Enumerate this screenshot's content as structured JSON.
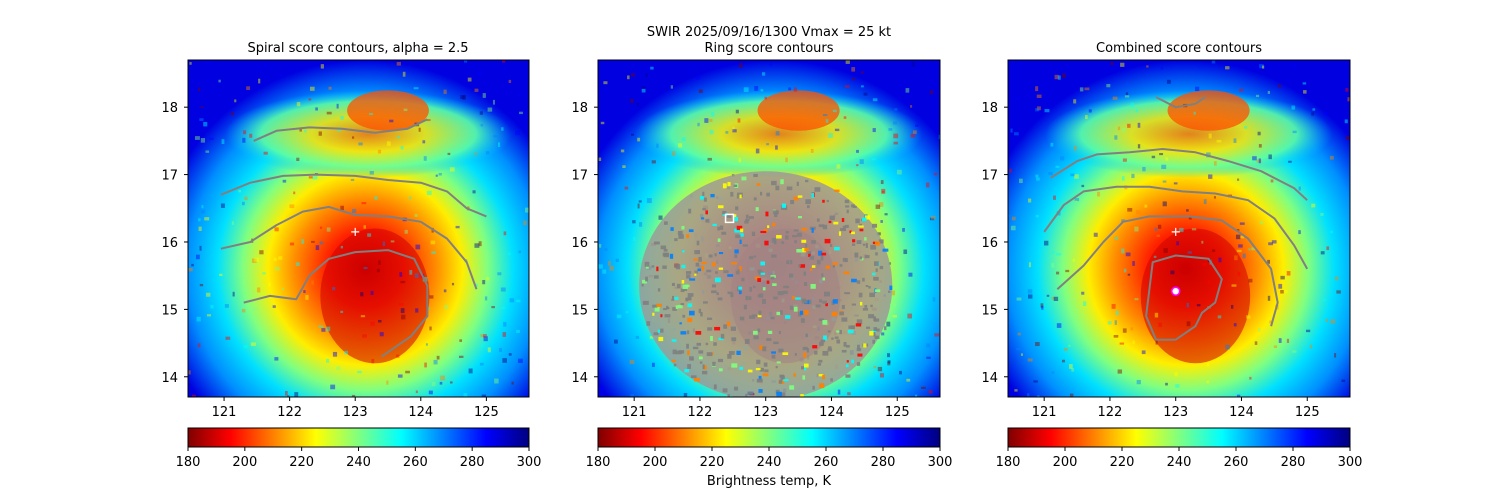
{
  "figure": {
    "suptitle_line1": "SWIR  2025/09/16/1300    Vmax = 25 kt",
    "colorbar_label": "Brightness temp, K"
  },
  "colormap": {
    "name": "jet_r",
    "stops": [
      "#800000",
      "#ff0000",
      "#ff8000",
      "#ffff00",
      "#80ff80",
      "#00ffff",
      "#0080ff",
      "#0000ff",
      "#000080"
    ]
  },
  "chart_data": [
    {
      "type": "heatmap",
      "title": "Spiral score contours, alpha =  2.5",
      "xlim": [
        120.45,
        125.65
      ],
      "ylim": [
        13.7,
        18.7
      ],
      "xticks": [
        121,
        122,
        123,
        124,
        125
      ],
      "yticks": [
        14,
        15,
        16,
        17,
        18
      ],
      "color_range": [
        180,
        300
      ],
      "colorbar_ticks": [
        180,
        200,
        220,
        240,
        260,
        280,
        300
      ],
      "overlay": "spiral contours",
      "contour_color": "#808080",
      "center_marker": {
        "type": "plus",
        "lon": 123.0,
        "lat": 16.15,
        "color": "#ffffff"
      },
      "contours": [
        {
          "name": "contour-1",
          "points": [
            [
              121.45,
              17.5
            ],
            [
              121.8,
              17.65
            ],
            [
              122.3,
              17.7
            ],
            [
              122.8,
              17.68
            ],
            [
              123.3,
              17.62
            ],
            [
              123.8,
              17.68
            ],
            [
              124.1,
              17.82
            ]
          ]
        },
        {
          "name": "contour-2",
          "points": [
            [
              120.95,
              16.7
            ],
            [
              121.4,
              16.88
            ],
            [
              121.9,
              16.98
            ],
            [
              122.4,
              17.0
            ],
            [
              123.0,
              16.98
            ],
            [
              123.5,
              16.92
            ],
            [
              124.0,
              16.88
            ],
            [
              124.4,
              16.75
            ],
            [
              124.7,
              16.5
            ],
            [
              125.0,
              16.38
            ]
          ]
        },
        {
          "name": "contour-3",
          "points": [
            [
              120.95,
              15.9
            ],
            [
              121.4,
              16.0
            ],
            [
              121.8,
              16.25
            ],
            [
              122.2,
              16.45
            ],
            [
              122.6,
              16.52
            ],
            [
              123.0,
              16.4
            ],
            [
              123.5,
              16.38
            ],
            [
              124.0,
              16.3
            ],
            [
              124.4,
              16.05
            ],
            [
              124.7,
              15.7
            ],
            [
              124.85,
              15.3
            ]
          ]
        },
        {
          "name": "contour-4",
          "points": [
            [
              121.3,
              15.1
            ],
            [
              121.7,
              15.2
            ],
            [
              122.1,
              15.15
            ],
            [
              122.3,
              15.5
            ],
            [
              122.6,
              15.75
            ],
            [
              123.0,
              15.85
            ],
            [
              123.5,
              15.88
            ],
            [
              123.9,
              15.75
            ],
            [
              124.1,
              15.35
            ],
            [
              124.1,
              14.9
            ],
            [
              123.85,
              14.6
            ],
            [
              123.4,
              14.3
            ]
          ]
        }
      ]
    },
    {
      "type": "heatmap",
      "title": "Ring score contours",
      "xlim": [
        120.45,
        125.65
      ],
      "ylim": [
        13.7,
        18.7
      ],
      "xticks": [
        121,
        122,
        123,
        124,
        125
      ],
      "yticks": [
        14,
        15,
        16,
        17,
        18
      ],
      "color_range": [
        180,
        300
      ],
      "colorbar_ticks": [
        180,
        200,
        220,
        240,
        260,
        280,
        300
      ],
      "overlay": "dense ring contours",
      "contour_color": "#808080",
      "square_marker": {
        "lon": 122.45,
        "lat": 16.35,
        "color": "#ffffff"
      }
    },
    {
      "type": "heatmap",
      "title": "Combined score contours",
      "xlim": [
        120.45,
        125.65
      ],
      "ylim": [
        13.7,
        18.7
      ],
      "xticks": [
        121,
        122,
        123,
        124,
        125
      ],
      "yticks": [
        14,
        15,
        16,
        17,
        18
      ],
      "color_range": [
        180,
        300
      ],
      "colorbar_ticks": [
        180,
        200,
        220,
        240,
        260,
        280,
        300
      ],
      "overlay": "combined contours",
      "contour_color": "#808080",
      "center_marker": {
        "type": "plus",
        "lon": 123.0,
        "lat": 16.15,
        "color": "#ffffff"
      },
      "circle_marker": {
        "lon": 123.0,
        "lat": 15.27,
        "color": "#ff00ff"
      },
      "contours": [
        {
          "name": "contour-1",
          "points": [
            [
              122.7,
              18.15
            ],
            [
              123.0,
              18.0
            ],
            [
              123.3,
              18.05
            ],
            [
              123.45,
              18.15
            ]
          ]
        },
        {
          "name": "contour-2",
          "points": [
            [
              121.1,
              16.95
            ],
            [
              121.5,
              17.2
            ],
            [
              121.8,
              17.3
            ],
            [
              122.3,
              17.33
            ],
            [
              122.8,
              17.38
            ],
            [
              123.3,
              17.33
            ],
            [
              123.8,
              17.2
            ],
            [
              124.3,
              17.05
            ],
            [
              124.8,
              16.8
            ],
            [
              125.0,
              16.62
            ]
          ]
        },
        {
          "name": "contour-3",
          "points": [
            [
              121.0,
              16.15
            ],
            [
              121.3,
              16.55
            ],
            [
              121.6,
              16.75
            ],
            [
              122.1,
              16.82
            ],
            [
              122.6,
              16.82
            ],
            [
              123.1,
              16.75
            ],
            [
              123.6,
              16.72
            ],
            [
              124.1,
              16.62
            ],
            [
              124.5,
              16.35
            ],
            [
              124.8,
              15.95
            ],
            [
              125.0,
              15.6
            ]
          ]
        },
        {
          "name": "contour-4",
          "points": [
            [
              121.2,
              15.3
            ],
            [
              121.6,
              15.65
            ],
            [
              121.9,
              16.0
            ],
            [
              122.2,
              16.3
            ],
            [
              122.6,
              16.38
            ],
            [
              123.2,
              16.38
            ],
            [
              123.7,
              16.32
            ],
            [
              124.1,
              16.05
            ],
            [
              124.45,
              15.6
            ],
            [
              124.55,
              15.1
            ],
            [
              124.45,
              14.75
            ]
          ]
        },
        {
          "name": "contour-5",
          "points": [
            [
              122.6,
              15.3
            ],
            [
              122.65,
              15.7
            ],
            [
              123.0,
              15.8
            ],
            [
              123.5,
              15.75
            ],
            [
              123.7,
              15.45
            ],
            [
              123.6,
              15.1
            ],
            [
              123.4,
              14.95
            ],
            [
              123.3,
              14.75
            ],
            [
              123.0,
              14.55
            ],
            [
              122.7,
              14.55
            ],
            [
              122.55,
              14.9
            ],
            [
              122.6,
              15.3
            ]
          ]
        }
      ]
    }
  ]
}
